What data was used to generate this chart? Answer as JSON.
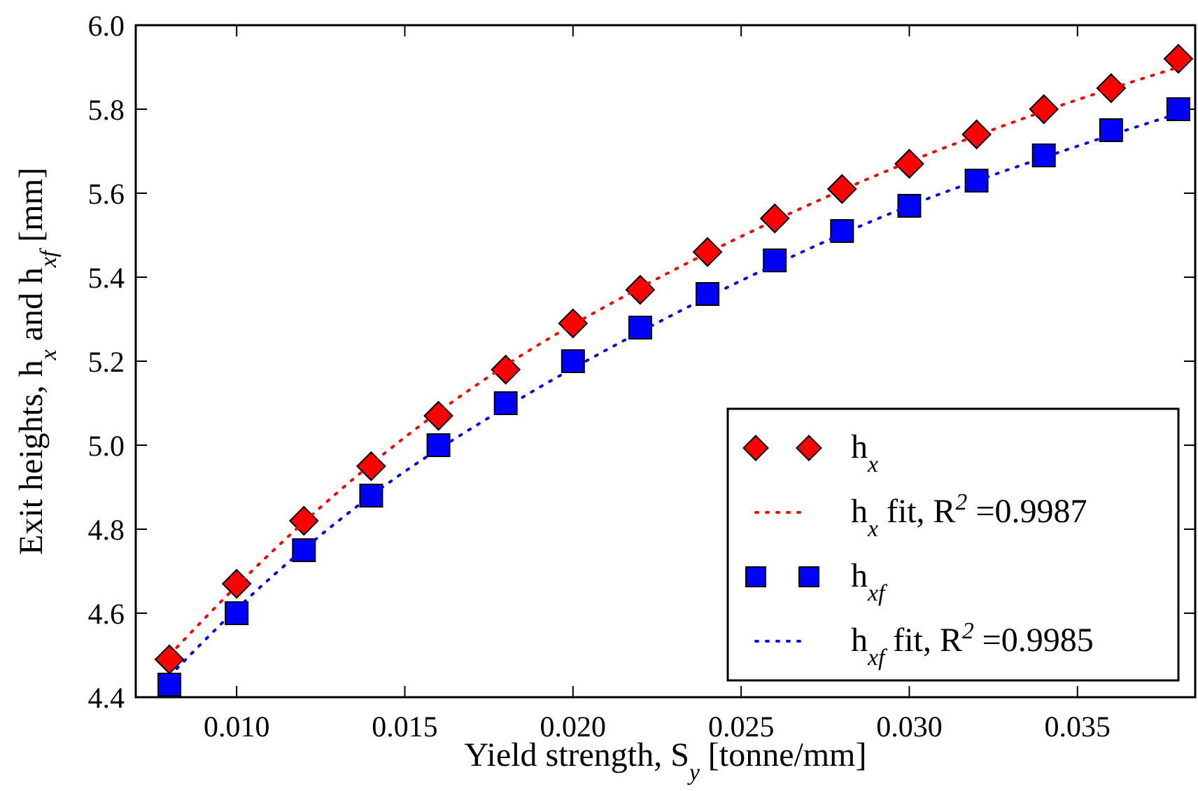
{
  "chart_data": {
    "type": "scatter",
    "xlabel": "Yield strength, S$_{y}$ [tonne/mm]",
    "ylabel": "Exit heights, h$_{x}$ and h$_{xf}$ [mm]",
    "xlim": [
      0.007,
      0.0385
    ],
    "ylim": [
      4.4,
      6.0
    ],
    "xticks": [
      {
        "value": 0.01,
        "label": "0.010"
      },
      {
        "value": 0.015,
        "label": "0.015"
      },
      {
        "value": 0.02,
        "label": "0.020"
      },
      {
        "value": 0.025,
        "label": "0.025"
      },
      {
        "value": 0.03,
        "label": "0.030"
      },
      {
        "value": 0.035,
        "label": "0.035"
      }
    ],
    "yticks": [
      {
        "value": 4.4,
        "label": "4.4"
      },
      {
        "value": 4.6,
        "label": "4.6"
      },
      {
        "value": 4.8,
        "label": "4.8"
      },
      {
        "value": 5.0,
        "label": "5.0"
      },
      {
        "value": 5.2,
        "label": "5.2"
      },
      {
        "value": 5.4,
        "label": "5.4"
      },
      {
        "value": 5.6,
        "label": "5.6"
      },
      {
        "value": 5.8,
        "label": "5.8"
      },
      {
        "value": 6.0,
        "label": "6.0"
      }
    ],
    "legend": "bottom right",
    "series": [
      {
        "name": "h$_{x}$",
        "marker": "diamond",
        "color": "#ff0000",
        "x": [
          0.008,
          0.01,
          0.012,
          0.014,
          0.016,
          0.018,
          0.02,
          0.022,
          0.024,
          0.026,
          0.028,
          0.03,
          0.032,
          0.034,
          0.036,
          0.038
        ],
        "values": [
          4.49,
          4.67,
          4.82,
          4.95,
          5.07,
          5.18,
          5.29,
          5.37,
          5.46,
          5.54,
          5.61,
          5.67,
          5.74,
          5.8,
          5.85,
          5.92
        ]
      },
      {
        "name": "h$_{x}$ fit, R$^{2}$ =0.9987",
        "type": "line",
        "marker": "none",
        "line_style": "dotted",
        "color": "#ff0000",
        "x": [
          0.008,
          0.01,
          0.014,
          0.018,
          0.022,
          0.026,
          0.03,
          0.034,
          0.038
        ],
        "values": [
          4.5,
          4.665,
          4.955,
          5.19,
          5.375,
          5.535,
          5.675,
          5.795,
          5.9
        ]
      },
      {
        "name": "h$_{xf}$",
        "marker": "square",
        "color": "#0000ff",
        "x": [
          0.008,
          0.01,
          0.012,
          0.014,
          0.016,
          0.018,
          0.02,
          0.022,
          0.024,
          0.026,
          0.028,
          0.03,
          0.032,
          0.034,
          0.036,
          0.038
        ],
        "values": [
          4.43,
          4.6,
          4.75,
          4.88,
          5.0,
          5.1,
          5.2,
          5.28,
          5.36,
          5.44,
          5.51,
          5.57,
          5.63,
          5.69,
          5.75,
          5.8
        ]
      },
      {
        "name": "h$_{xf}$ fit, R$^{2}$ =0.9985",
        "type": "line",
        "marker": "none",
        "line_style": "dotted",
        "color": "#0000ff",
        "x": [
          0.008,
          0.01,
          0.014,
          0.018,
          0.022,
          0.026,
          0.03,
          0.034,
          0.038
        ],
        "values": [
          4.45,
          4.61,
          4.88,
          5.09,
          5.27,
          5.43,
          5.57,
          5.685,
          5.79
        ]
      }
    ]
  }
}
